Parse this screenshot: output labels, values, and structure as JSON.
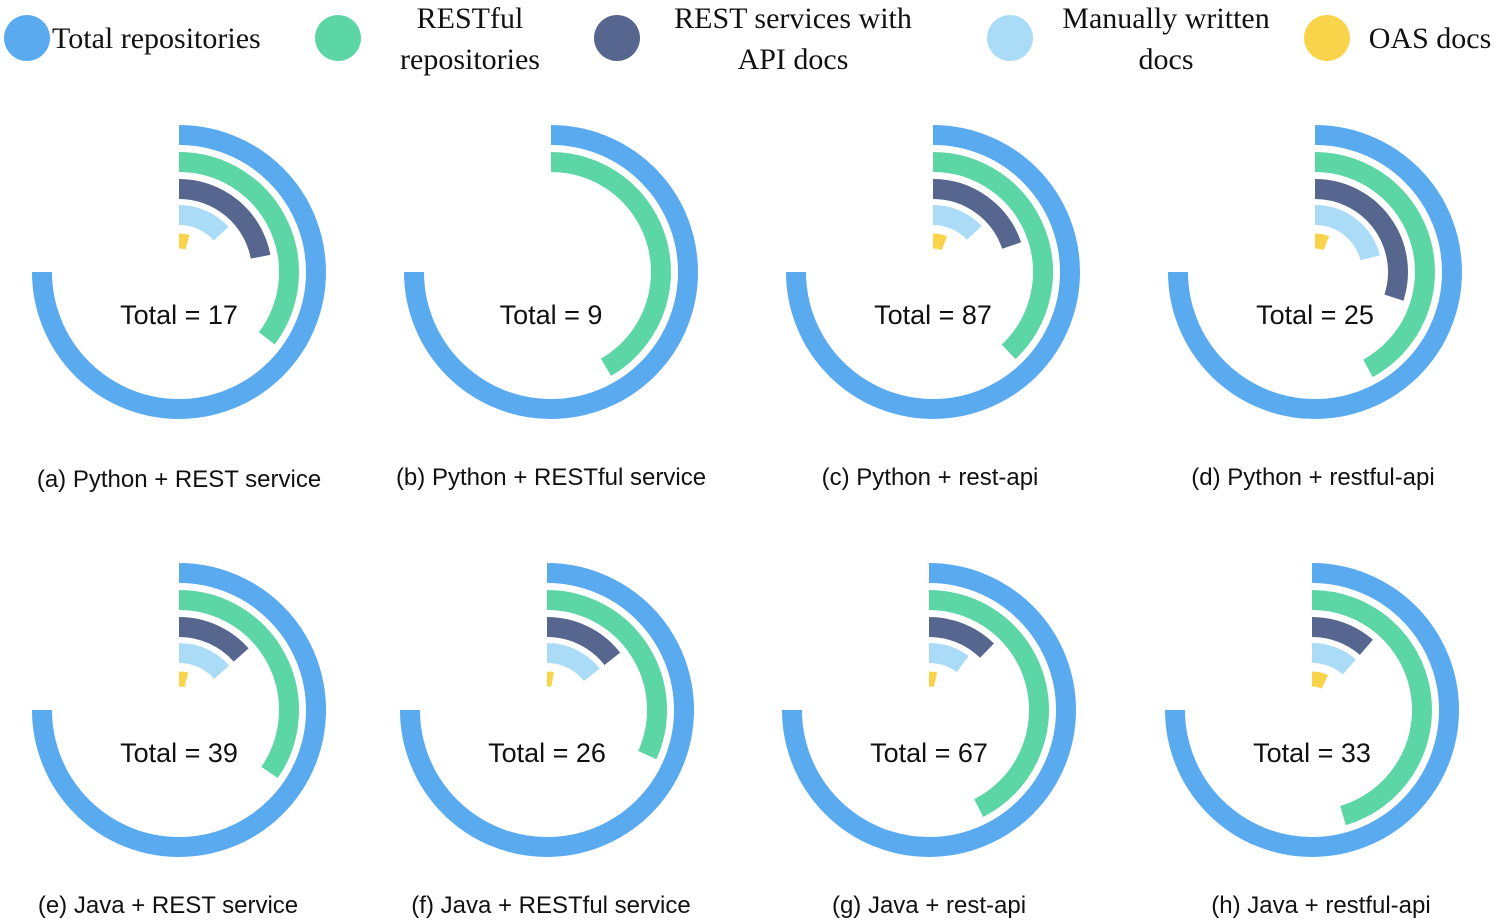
{
  "chart_data": {
    "type": "radial-bar",
    "legend": [
      {
        "label": "Total repositories",
        "color": "#5aaaf0"
      },
      {
        "label": "RESTful repositories",
        "color": "#5dd6a6"
      },
      {
        "label": "REST services with API docs",
        "color": "#56668f"
      },
      {
        "label": "Manually written docs",
        "color": "#aadbf7"
      },
      {
        "label": "OAS docs",
        "color": "#f9d44b"
      }
    ],
    "panels": [
      {
        "caption": "(a) Python + REST service",
        "total_label": "Total = 17",
        "total": 17,
        "values": [
          17,
          8,
          5,
          3,
          1
        ]
      },
      {
        "caption": "(b) Python + RESTful service",
        "total_label": "Total = 9",
        "total": 9,
        "values": [
          9,
          5,
          0,
          0,
          0
        ]
      },
      {
        "caption": "(c) Python + rest-api",
        "total_label": "Total = 87",
        "total": 87,
        "values": [
          87,
          44,
          23,
          15,
          7
        ]
      },
      {
        "caption": "(d) Python + restful-api",
        "total_label": "Total = 25",
        "total": 25,
        "values": [
          25,
          14,
          10,
          7,
          2
        ]
      },
      {
        "caption": "(e) Java + REST service",
        "total_label": "Total = 39",
        "total": 39,
        "values": [
          39,
          18,
          7,
          7,
          2
        ]
      },
      {
        "caption": "(f) Java + RESTful service",
        "total_label": "Total = 26",
        "total": 26,
        "values": [
          26,
          11,
          5,
          5,
          1
        ]
      },
      {
        "caption": "(g) Java + rest-api",
        "total_label": "Total = 67",
        "total": 67,
        "values": [
          67,
          38,
          11,
          9,
          3
        ]
      },
      {
        "caption": "(h) Java + restful-api",
        "total_label": "Total = 33",
        "total": 33,
        "values": [
          33,
          20,
          5,
          5,
          3
        ]
      }
    ]
  }
}
